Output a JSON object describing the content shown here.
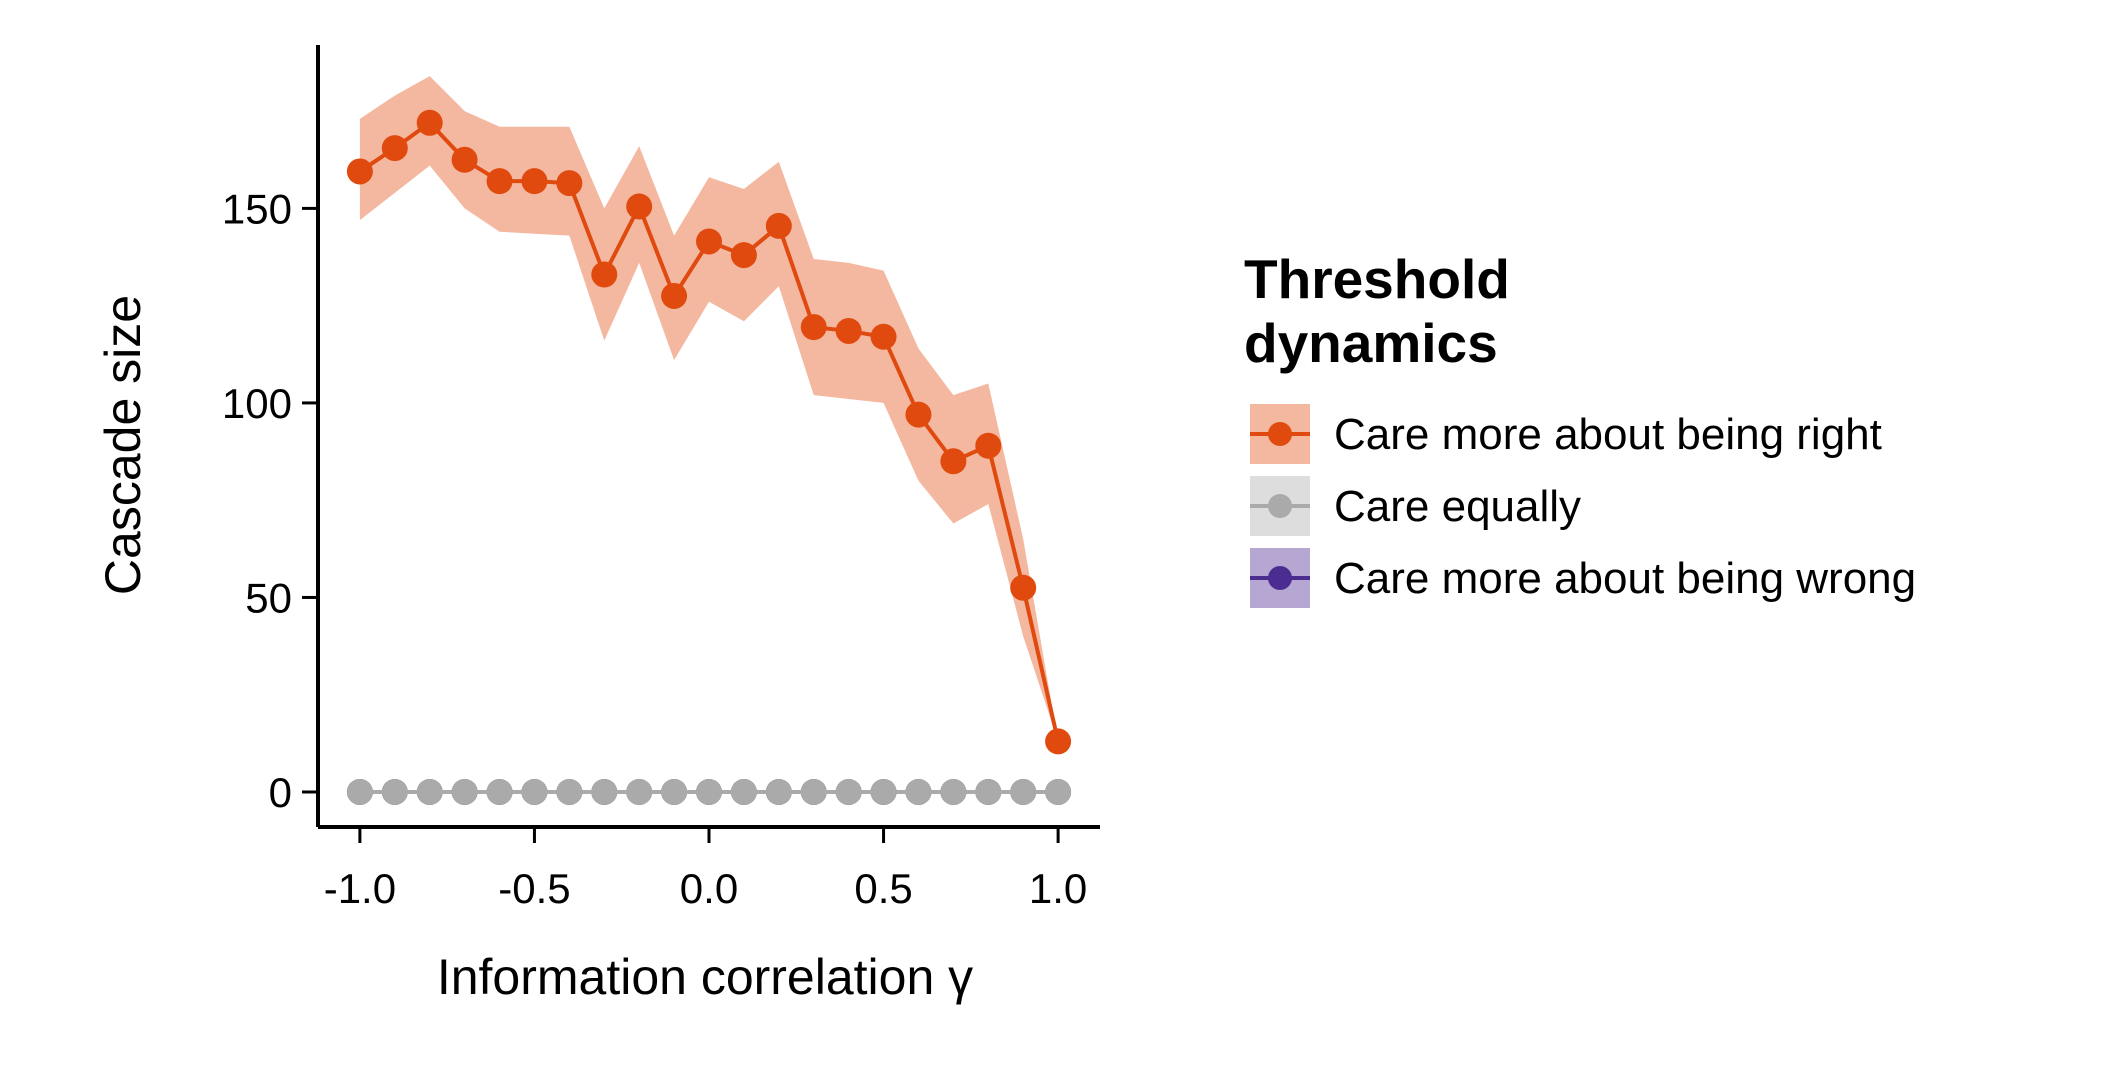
{
  "chart_data": {
    "type": "line",
    "xlabel": "Information correlation γ",
    "ylabel": "Cascade size",
    "xlim": [
      -1.12,
      1.12
    ],
    "ylim": [
      -9,
      192
    ],
    "x_ticks": [
      -1.0,
      -0.5,
      0.0,
      0.5,
      1.0
    ],
    "x_tick_labels": [
      "-1.0",
      "-0.5",
      "0.0",
      "0.5",
      "1.0"
    ],
    "y_ticks": [
      0,
      50,
      100,
      150
    ],
    "y_tick_labels": [
      "0",
      "50",
      "100",
      "150"
    ],
    "grid": false,
    "legend": {
      "title_lines": [
        "Threshold",
        "dynamics"
      ],
      "placement": "right"
    },
    "x": [
      -1.0,
      -0.9,
      -0.8,
      -0.7,
      -0.6,
      -0.5,
      -0.4,
      -0.3,
      -0.2,
      -0.1,
      0.0,
      0.1,
      0.2,
      0.3,
      0.4,
      0.5,
      0.6,
      0.7,
      0.8,
      0.9,
      1.0
    ],
    "series": [
      {
        "name": "Care more about being right",
        "color": "#e04a0e",
        "band_color": "#f4b8a0",
        "values": [
          159.5,
          165.5,
          172,
          162.5,
          157,
          157,
          156.5,
          133,
          150.5,
          127.5,
          141.5,
          138,
          145.5,
          119.5,
          118.5,
          117,
          97,
          85,
          89,
          52.5,
          13
        ],
        "lower": [
          147,
          154,
          161,
          150,
          144,
          143.5,
          143,
          116,
          136,
          111,
          126,
          121,
          130,
          102,
          101,
          100,
          80,
          69,
          74,
          40,
          13
        ],
        "upper": [
          173,
          179,
          184,
          175,
          171,
          171,
          171,
          150,
          166,
          143,
          158,
          155,
          162,
          137,
          136,
          134,
          114,
          102,
          105,
          65,
          13
        ]
      },
      {
        "name": "Care equally",
        "color": "#aaaaaa",
        "band_color": "#dddddd",
        "values": [
          0,
          0,
          0,
          0,
          0,
          0,
          0,
          0,
          0,
          0,
          0,
          0,
          0,
          0,
          0,
          0,
          0,
          0,
          0,
          0,
          0
        ]
      },
      {
        "name": "Care more about being wrong",
        "color": "#4b2d91",
        "band_color": "#b6a6d2",
        "values": [
          0,
          0,
          0,
          0,
          0,
          0,
          0,
          0,
          0,
          0,
          0,
          0,
          0,
          0,
          0,
          0,
          0,
          0,
          0,
          0,
          0
        ]
      }
    ]
  }
}
